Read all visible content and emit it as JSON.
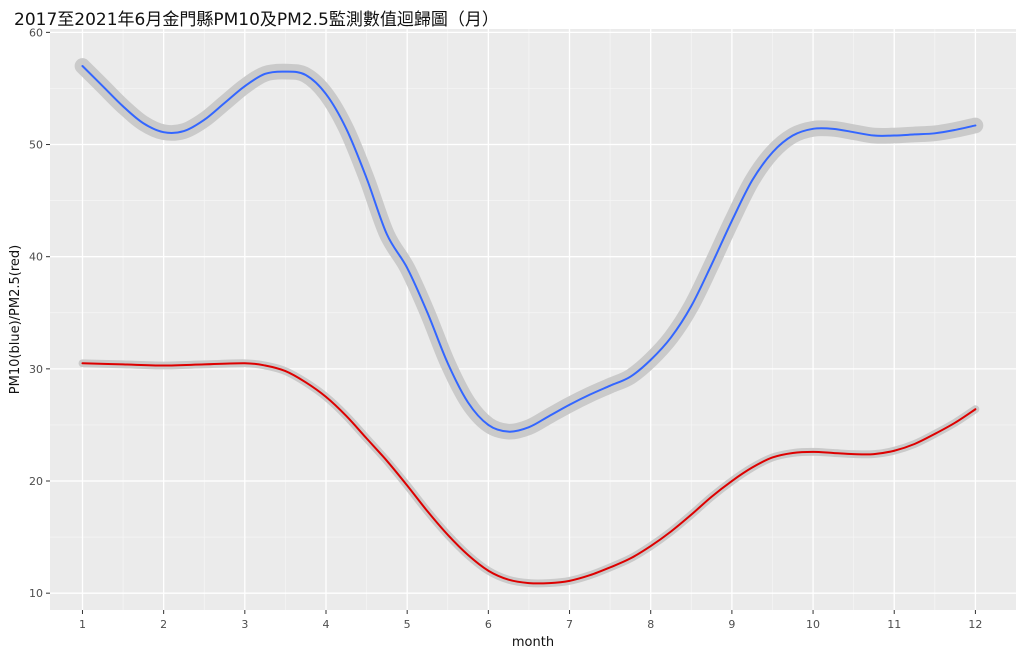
{
  "chart_data": {
    "type": "line",
    "title": "2017至2021年6月金門縣PM10及PM2.5監測數值迴歸圖（月）",
    "xlabel": "month",
    "ylabel": "PM10(blue)/PM2.5(red)",
    "xlim": [
      0.6,
      12.5
    ],
    "ylim": [
      8.5,
      60.3
    ],
    "x_ticks": [
      1,
      2,
      3,
      4,
      5,
      6,
      7,
      8,
      9,
      10,
      11,
      12
    ],
    "y_ticks": [
      10,
      20,
      30,
      40,
      50,
      60
    ],
    "grid": true,
    "legend": "none",
    "smooth": true,
    "confidence_band": true,
    "band_color": "#c8c8c8",
    "panel_background": "#ebebeb",
    "series": [
      {
        "color": "#3366ff",
        "band": 0.7,
        "points": [
          [
            1,
            57.0
          ],
          [
            1.25,
            55.2
          ],
          [
            1.5,
            53.4
          ],
          [
            1.75,
            51.9
          ],
          [
            2,
            51.1
          ],
          [
            2.25,
            51.2
          ],
          [
            2.5,
            52.2
          ],
          [
            2.75,
            53.7
          ],
          [
            3,
            55.2
          ],
          [
            3.25,
            56.3
          ],
          [
            3.5,
            56.5
          ],
          [
            3.75,
            56.2
          ],
          [
            4,
            54.5
          ],
          [
            4.25,
            51.4
          ],
          [
            4.5,
            47.0
          ],
          [
            4.75,
            42.0
          ],
          [
            5,
            39.0
          ],
          [
            5.25,
            35.0
          ],
          [
            5.5,
            30.5
          ],
          [
            5.75,
            27.0
          ],
          [
            6,
            25.0
          ],
          [
            6.25,
            24.4
          ],
          [
            6.5,
            24.8
          ],
          [
            6.75,
            25.8
          ],
          [
            7,
            26.8
          ],
          [
            7.25,
            27.7
          ],
          [
            7.5,
            28.5
          ],
          [
            7.75,
            29.3
          ],
          [
            8,
            30.8
          ],
          [
            8.25,
            32.8
          ],
          [
            8.5,
            35.6
          ],
          [
            8.75,
            39.3
          ],
          [
            9,
            43.2
          ],
          [
            9.25,
            46.8
          ],
          [
            9.5,
            49.3
          ],
          [
            9.75,
            50.8
          ],
          [
            10,
            51.4
          ],
          [
            10.25,
            51.4
          ],
          [
            10.5,
            51.1
          ],
          [
            10.75,
            50.8
          ],
          [
            11,
            50.8
          ],
          [
            11.25,
            50.9
          ],
          [
            11.5,
            51.0
          ],
          [
            11.75,
            51.3
          ],
          [
            12,
            51.7
          ]
        ]
      },
      {
        "color": "#dd0000",
        "band": 0.35,
        "points": [
          [
            1,
            30.5
          ],
          [
            1.5,
            30.4
          ],
          [
            2,
            30.3
          ],
          [
            2.5,
            30.4
          ],
          [
            3,
            30.5
          ],
          [
            3.25,
            30.3
          ],
          [
            3.5,
            29.8
          ],
          [
            3.75,
            28.8
          ],
          [
            4,
            27.5
          ],
          [
            4.25,
            25.8
          ],
          [
            4.5,
            23.8
          ],
          [
            4.75,
            21.8
          ],
          [
            5,
            19.6
          ],
          [
            5.25,
            17.3
          ],
          [
            5.5,
            15.2
          ],
          [
            5.75,
            13.4
          ],
          [
            6,
            12.0
          ],
          [
            6.25,
            11.2
          ],
          [
            6.5,
            10.9
          ],
          [
            6.75,
            10.9
          ],
          [
            7,
            11.1
          ],
          [
            7.25,
            11.6
          ],
          [
            7.5,
            12.3
          ],
          [
            7.75,
            13.1
          ],
          [
            8,
            14.2
          ],
          [
            8.25,
            15.5
          ],
          [
            8.5,
            17.0
          ],
          [
            8.75,
            18.6
          ],
          [
            9,
            20.0
          ],
          [
            9.25,
            21.2
          ],
          [
            9.5,
            22.1
          ],
          [
            9.75,
            22.5
          ],
          [
            10,
            22.6
          ],
          [
            10.25,
            22.5
          ],
          [
            10.5,
            22.4
          ],
          [
            10.75,
            22.4
          ],
          [
            11,
            22.7
          ],
          [
            11.25,
            23.3
          ],
          [
            11.5,
            24.2
          ],
          [
            11.75,
            25.2
          ],
          [
            12,
            26.4
          ]
        ]
      }
    ]
  }
}
